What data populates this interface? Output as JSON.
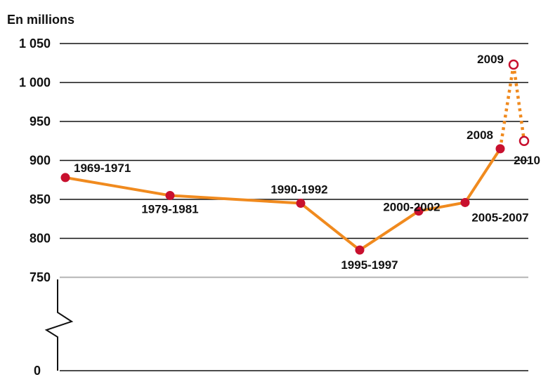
{
  "chart_data": {
    "type": "line",
    "unit_label": "En millions",
    "y_ticks": [
      "1 050",
      "1 000",
      "950",
      "900",
      "850",
      "800",
      "750",
      "0"
    ],
    "ylim": [
      750,
      1050
    ],
    "axis_break": "between 0 and 750",
    "grid": true,
    "series": [
      {
        "style": "solid",
        "points": [
          {
            "x": "1969-1971",
            "y": 878
          },
          {
            "x": "1979-1981",
            "y": 855
          },
          {
            "x": "1990-1992",
            "y": 845
          },
          {
            "x": "1995-1997",
            "y": 785
          },
          {
            "x": "2000-2002",
            "y": 835
          },
          {
            "x": "2005-2007",
            "y": 846
          },
          {
            "x": "2008",
            "y": 915
          }
        ]
      },
      {
        "style": "dotted",
        "points": [
          {
            "x": "2008",
            "y": 915
          },
          {
            "x": "2009",
            "y": 1023
          },
          {
            "x": "2010",
            "y": 925
          }
        ]
      }
    ],
    "colors": {
      "line": "#f08a1e",
      "marker": "#c8102e",
      "grid": "#111111",
      "baseline": "#bdbdbd"
    }
  }
}
